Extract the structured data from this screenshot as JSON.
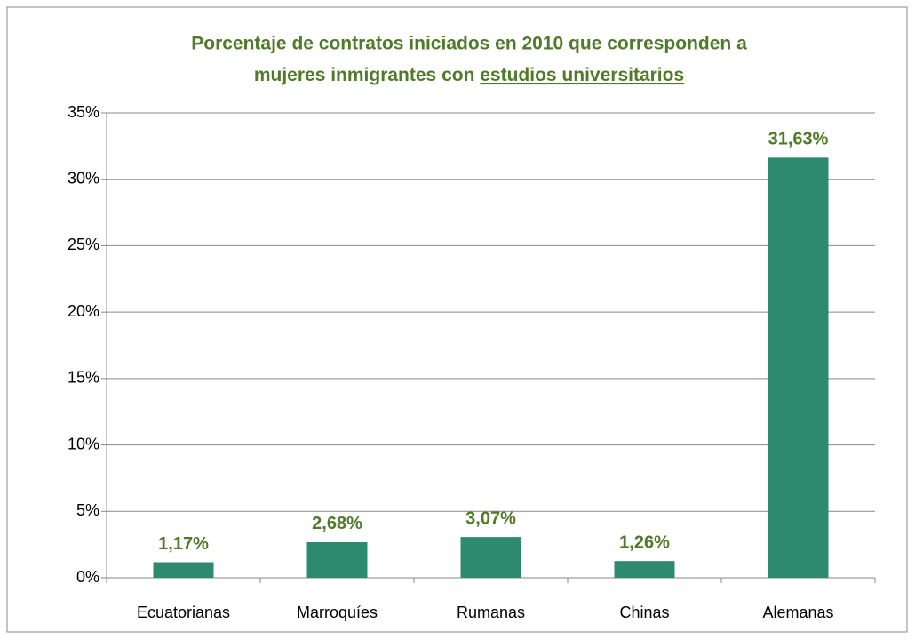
{
  "chart_data": {
    "type": "bar",
    "title": [
      "Porcentaje de contratos iniciados en 2010 que corresponden a",
      "mujeres inmigrantes con",
      "estudios universitarios"
    ],
    "categories": [
      "Ecuatorianas",
      "Marroquíes",
      "Rumanas",
      "Chinas",
      "Alemanas"
    ],
    "values": [
      1.17,
      2.68,
      3.07,
      1.26,
      31.63
    ],
    "value_labels": [
      "1,17%",
      "2,68%",
      "3,07%",
      "1,26%",
      "31,63%"
    ],
    "color": "#2e8a6c",
    "ylim": [
      0,
      35
    ],
    "yticks": [
      {
        "value": 0,
        "label": "0%"
      },
      {
        "value": 5,
        "label": "5%"
      },
      {
        "value": 10,
        "label": "10%"
      },
      {
        "value": 15,
        "label": "15%"
      },
      {
        "value": 20,
        "label": "20%"
      },
      {
        "value": 25,
        "label": "25%"
      },
      {
        "value": 30,
        "label": "30%"
      },
      {
        "value": 35,
        "label": "35%"
      }
    ],
    "grid": true
  }
}
